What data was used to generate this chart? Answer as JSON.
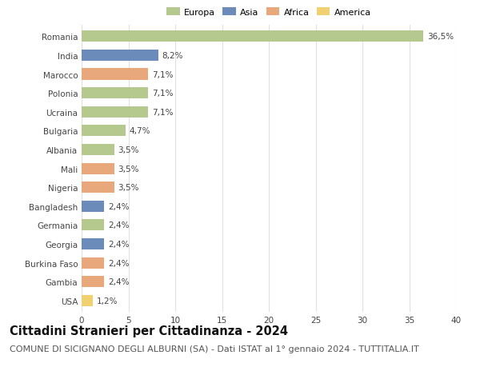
{
  "countries": [
    "Romania",
    "India",
    "Marocco",
    "Polonia",
    "Ucraina",
    "Bulgaria",
    "Albania",
    "Mali",
    "Nigeria",
    "Bangladesh",
    "Germania",
    "Georgia",
    "Burkina Faso",
    "Gambia",
    "USA"
  ],
  "values": [
    36.5,
    8.2,
    7.1,
    7.1,
    7.1,
    4.7,
    3.5,
    3.5,
    3.5,
    2.4,
    2.4,
    2.4,
    2.4,
    2.4,
    1.2
  ],
  "labels": [
    "36,5%",
    "8,2%",
    "7,1%",
    "7,1%",
    "7,1%",
    "4,7%",
    "3,5%",
    "3,5%",
    "3,5%",
    "2,4%",
    "2,4%",
    "2,4%",
    "2,4%",
    "2,4%",
    "1,2%"
  ],
  "continents": [
    "Europa",
    "Asia",
    "Africa",
    "Europa",
    "Europa",
    "Europa",
    "Europa",
    "Africa",
    "Africa",
    "Asia",
    "Europa",
    "Asia",
    "Africa",
    "Africa",
    "America"
  ],
  "continent_colors": {
    "Europa": "#b5c98e",
    "Asia": "#6b8cba",
    "Africa": "#e8a87c",
    "America": "#f0d070"
  },
  "legend_order": [
    "Europa",
    "Asia",
    "Africa",
    "America"
  ],
  "title": "Cittadini Stranieri per Cittadinanza - 2024",
  "subtitle": "COMUNE DI SICIGNANO DEGLI ALBURNI (SA) - Dati ISTAT al 1° gennaio 2024 - TUTTITALIA.IT",
  "xlim": [
    0,
    40
  ],
  "xticks": [
    0,
    5,
    10,
    15,
    20,
    25,
    30,
    35,
    40
  ],
  "background_color": "#ffffff",
  "grid_color": "#e0e0e0",
  "title_fontsize": 10.5,
  "subtitle_fontsize": 8,
  "label_fontsize": 7.5,
  "tick_fontsize": 7.5,
  "bar_height": 0.6
}
